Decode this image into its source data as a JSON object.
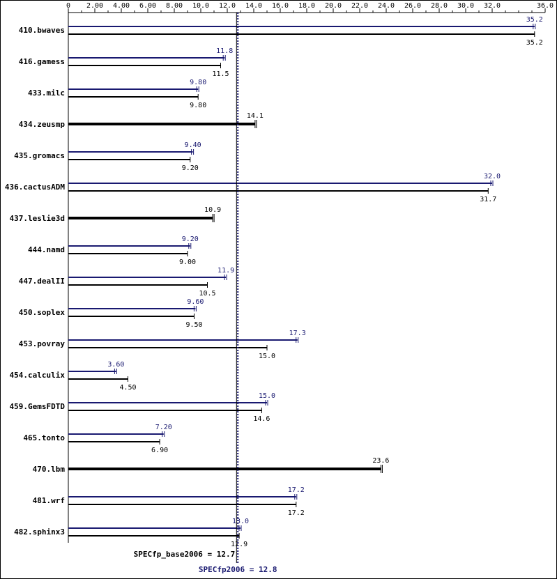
{
  "chart_data": {
    "type": "bar",
    "xlim": [
      0,
      36
    ],
    "ticks": [
      "0",
      "2.00",
      "4.00",
      "6.00",
      "8.00",
      "10.0",
      "12.0",
      "14.0",
      "16.0",
      "18.0",
      "20.0",
      "22.0",
      "24.0",
      "26.0",
      "28.0",
      "30.0",
      "32.0",
      "36.0"
    ],
    "tick_values": [
      0,
      2,
      4,
      6,
      8,
      10,
      12,
      14,
      16,
      18,
      20,
      22,
      24,
      26,
      28,
      30,
      32,
      36
    ],
    "minor_tick_step": 1,
    "categories": [
      "410.bwaves",
      "416.gamess",
      "433.milc",
      "434.zeusmp",
      "435.gromacs",
      "436.cactusADM",
      "437.leslie3d",
      "444.namd",
      "447.dealII",
      "450.soplex",
      "453.povray",
      "454.calculix",
      "459.GemsFDTD",
      "465.tonto",
      "470.lbm",
      "481.wrf",
      "482.sphinx3"
    ],
    "series": [
      {
        "key": "peak",
        "color": "#191970",
        "values": [
          35.2,
          11.8,
          9.8,
          null,
          9.4,
          32.0,
          null,
          9.2,
          11.9,
          9.6,
          17.3,
          3.6,
          15.0,
          7.2,
          null,
          17.2,
          13.0
        ],
        "labels": [
          "35.2",
          "11.8",
          "9.80",
          "",
          "9.40",
          "32.0",
          "",
          "9.20",
          "11.9",
          "9.60",
          "17.3",
          "3.60",
          "15.0",
          "7.20",
          "",
          "17.2",
          "13.0"
        ]
      },
      {
        "key": "base",
        "color": "#000000",
        "values": [
          35.2,
          11.5,
          9.8,
          14.1,
          9.2,
          31.7,
          10.9,
          9.0,
          10.5,
          9.5,
          15.0,
          4.5,
          14.6,
          6.9,
          23.6,
          17.2,
          12.9
        ],
        "labels": [
          "35.2",
          "11.5",
          "9.80",
          "14.1",
          "9.20",
          "31.7",
          "10.9",
          "9.00",
          "10.5",
          "9.50",
          "15.0",
          "4.50",
          "14.6",
          "6.90",
          "23.6",
          "17.2",
          "12.9"
        ]
      }
    ],
    "reference_lines": [
      {
        "key": "base",
        "value": 12.7,
        "label": "SPECfp_base2006 = 12.7",
        "color": "#000000",
        "style": "solid"
      },
      {
        "key": "peak",
        "value": 12.8,
        "label": "SPECfp2006 = 12.8",
        "color": "#191970",
        "style": "dotted"
      }
    ],
    "grid": false,
    "legend": "none"
  }
}
